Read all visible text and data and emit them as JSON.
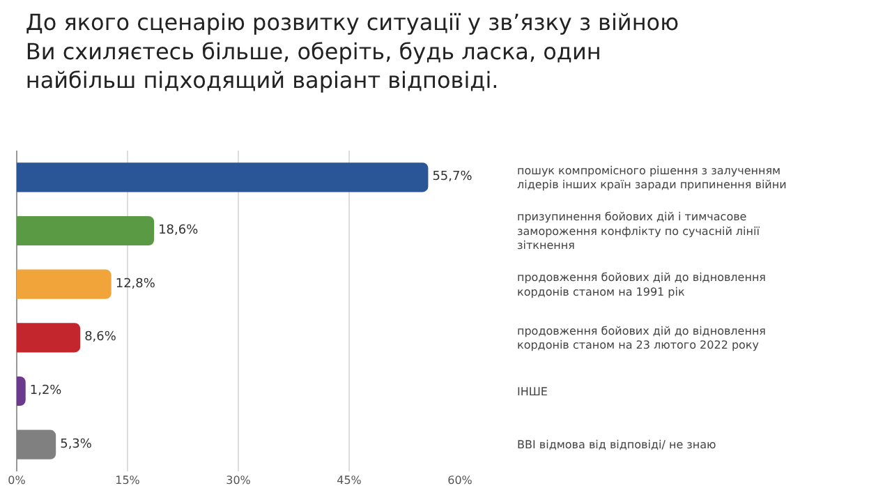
{
  "chart_data": {
    "type": "bar",
    "orientation": "horizontal",
    "title": "До якого сценарію розвитку ситуації у зв’язку з війною\nВи схиляєтесь більше, оберіть, будь ласка, один\nнайбільш підходящий варіант відповіді.",
    "categories": [
      "пошук компромісного рішення з залученням лідерів інших країн заради припинення війни",
      "призупинення бойових дій і тимчасове замороження конфлікту по сучасній лінії зіткнення",
      "продовження бойових дій до відновлення кордонів станом на 1991 рік",
      "продовження бойових дій до відновлення кордонів станом на 23 лютого 2022 року",
      "ІНШЕ",
      "ВВІ відмова від відповіді/ не знаю"
    ],
    "values": [
      55.7,
      18.6,
      12.8,
      8.6,
      1.2,
      5.3
    ],
    "value_labels": [
      "55,7%",
      "18,6%",
      "12,8%",
      "8,6%",
      "1,2%",
      "5,3%"
    ],
    "colors": [
      "#2a5597",
      "#5a9a45",
      "#f0a43a",
      "#c4262e",
      "#6b3a8c",
      "#808080"
    ],
    "xlim": [
      0,
      60
    ],
    "xticks": [
      {
        "value": 0,
        "label": "0%"
      },
      {
        "value": 15,
        "label": "15%"
      },
      {
        "value": 30,
        "label": "30%"
      },
      {
        "value": 45,
        "label": "45%"
      },
      {
        "value": 60,
        "label": "60%"
      }
    ],
    "grid": "x"
  }
}
